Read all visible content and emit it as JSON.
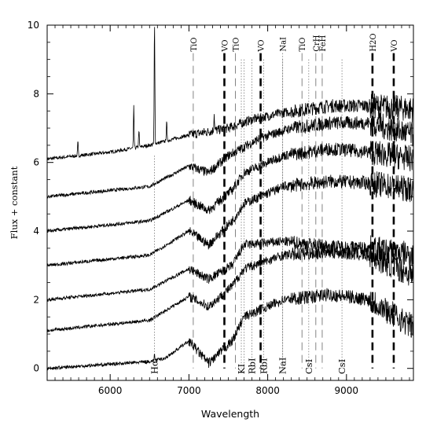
{
  "chart_data": {
    "type": "line",
    "title": "",
    "xlabel": "Wavelength",
    "ylabel": "Flux + constant",
    "xlim": [
      5200,
      9850
    ],
    "ylim": [
      -0.35,
      10
    ],
    "xticks": [
      6000,
      7000,
      8000,
      9000
    ],
    "yticks": [
      0,
      2,
      4,
      6,
      8,
      10
    ],
    "grid": false,
    "series_offsets": [
      6.1,
      5.0,
      4.0,
      3.0,
      2.0,
      1.1,
      0.0
    ],
    "series": [
      {
        "offset": 6.1,
        "profile": [
          [
            5200,
            0
          ],
          [
            6000,
            0.2
          ],
          [
            6500,
            0.4
          ],
          [
            7000,
            0.7
          ],
          [
            7500,
            0.9
          ],
          [
            7800,
            1.15
          ],
          [
            8200,
            1.35
          ],
          [
            8800,
            1.55
          ],
          [
            9300,
            1.55
          ],
          [
            9850,
            1.45
          ]
        ],
        "emission": [
          [
            5590,
            0.4
          ],
          [
            6300,
            1.2
          ],
          [
            6365,
            0.5
          ],
          [
            6563,
            3.7
          ],
          [
            6717,
            0.6
          ],
          [
            7320,
            0.5
          ]
        ]
      },
      {
        "offset": 5.0,
        "profile": [
          [
            5200,
            0
          ],
          [
            6500,
            0.3
          ],
          [
            7000,
            0.9
          ],
          [
            7250,
            0.7
          ],
          [
            7500,
            1.2
          ],
          [
            7900,
            1.7
          ],
          [
            8300,
            2.0
          ],
          [
            8800,
            2.15
          ],
          [
            9300,
            2.15
          ],
          [
            9850,
            1.8
          ]
        ],
        "emission": []
      },
      {
        "offset": 4.0,
        "profile": [
          [
            5200,
            0
          ],
          [
            6500,
            0.3
          ],
          [
            7000,
            0.9
          ],
          [
            7250,
            0.6
          ],
          [
            7550,
            1.2
          ],
          [
            7700,
            1.7
          ],
          [
            8200,
            2.2
          ],
          [
            8800,
            2.4
          ],
          [
            9300,
            2.3
          ],
          [
            9850,
            2.1
          ]
        ],
        "emission": []
      },
      {
        "offset": 3.0,
        "profile": [
          [
            5200,
            0
          ],
          [
            6500,
            0.3
          ],
          [
            7000,
            1.0
          ],
          [
            7250,
            0.6
          ],
          [
            7550,
            1.3
          ],
          [
            7700,
            1.8
          ],
          [
            8200,
            2.3
          ],
          [
            8800,
            2.45
          ],
          [
            9300,
            2.4
          ],
          [
            9850,
            2.2
          ]
        ],
        "emission": []
      },
      {
        "offset": 2.0,
        "profile": [
          [
            5200,
            0
          ],
          [
            6500,
            0.3
          ],
          [
            7000,
            0.9
          ],
          [
            7250,
            0.6
          ],
          [
            7550,
            1.0
          ],
          [
            7700,
            1.6
          ],
          [
            8200,
            1.7
          ],
          [
            8800,
            1.55
          ],
          [
            9300,
            1.5
          ],
          [
            9850,
            1.3
          ]
        ],
        "emission": []
      },
      {
        "offset": 1.1,
        "profile": [
          [
            5200,
            0
          ],
          [
            6500,
            0.3
          ],
          [
            7000,
            1.0
          ],
          [
            7250,
            0.7
          ],
          [
            7550,
            1.3
          ],
          [
            7700,
            1.8
          ],
          [
            8200,
            2.2
          ],
          [
            8800,
            2.3
          ],
          [
            9300,
            2.2
          ],
          [
            9850,
            1.6
          ]
        ],
        "emission": []
      },
      {
        "offset": 0.0,
        "profile": [
          [
            5200,
            0
          ],
          [
            6500,
            0.2
          ],
          [
            6700,
            0.3
          ],
          [
            7000,
            0.8
          ],
          [
            7250,
            0.15
          ],
          [
            7550,
            0.8
          ],
          [
            7700,
            1.5
          ],
          [
            8200,
            2.0
          ],
          [
            8800,
            2.15
          ],
          [
            9300,
            2.0
          ],
          [
            9850,
            1.2
          ]
        ],
        "emission": [
          [
            6563,
            0.2
          ]
        ]
      }
    ],
    "annotations_top": [
      {
        "label": "TiO",
        "x": 7055,
        "style": "dashed-thin"
      },
      {
        "label": "VO",
        "x": 7450,
        "style": "dashed-thick"
      },
      {
        "label": "TiO",
        "x": 7590,
        "style": "dashed-thin"
      },
      {
        "label": "VO",
        "x": 7910,
        "style": "dashed-thick"
      },
      {
        "label": "NaI",
        "x": 8190,
        "style": "dotted"
      },
      {
        "label": "TiO",
        "x": 8435,
        "style": "dashed-thin"
      },
      {
        "label": "CrH",
        "x": 8611,
        "style": "dashed-thin"
      },
      {
        "label": "FeH",
        "x": 8692,
        "style": "dashed-thin"
      },
      {
        "label": "H2O",
        "x": 9330,
        "style": "dashed-thick"
      },
      {
        "label": "VO",
        "x": 9600,
        "style": "dashed-thick"
      }
    ],
    "annotations_bottom": [
      {
        "label": "Hα",
        "x": 6563
      },
      {
        "label": "KI",
        "x": 7665
      },
      {
        "label": "RbI",
        "x": 7800
      },
      {
        "label": "RbI",
        "x": 7948
      },
      {
        "label": "NaI",
        "x": 8190
      },
      {
        "label": "CsI",
        "x": 8521
      },
      {
        "label": "CsI",
        "x": 8943
      }
    ],
    "dotted_lines": [
      {
        "x": 6563,
        "y_top": 6.2
      },
      {
        "x": 7665,
        "y_top": 9.0
      },
      {
        "x": 7699,
        "y_top": 9.0
      },
      {
        "x": 7800,
        "y_top": 9.0
      },
      {
        "x": 7948,
        "y_top": 9.0
      },
      {
        "x": 8190,
        "y_top": 9.0
      },
      {
        "x": 8521,
        "y_top": 9.0
      },
      {
        "x": 8943,
        "y_top": 9.0
      }
    ]
  }
}
